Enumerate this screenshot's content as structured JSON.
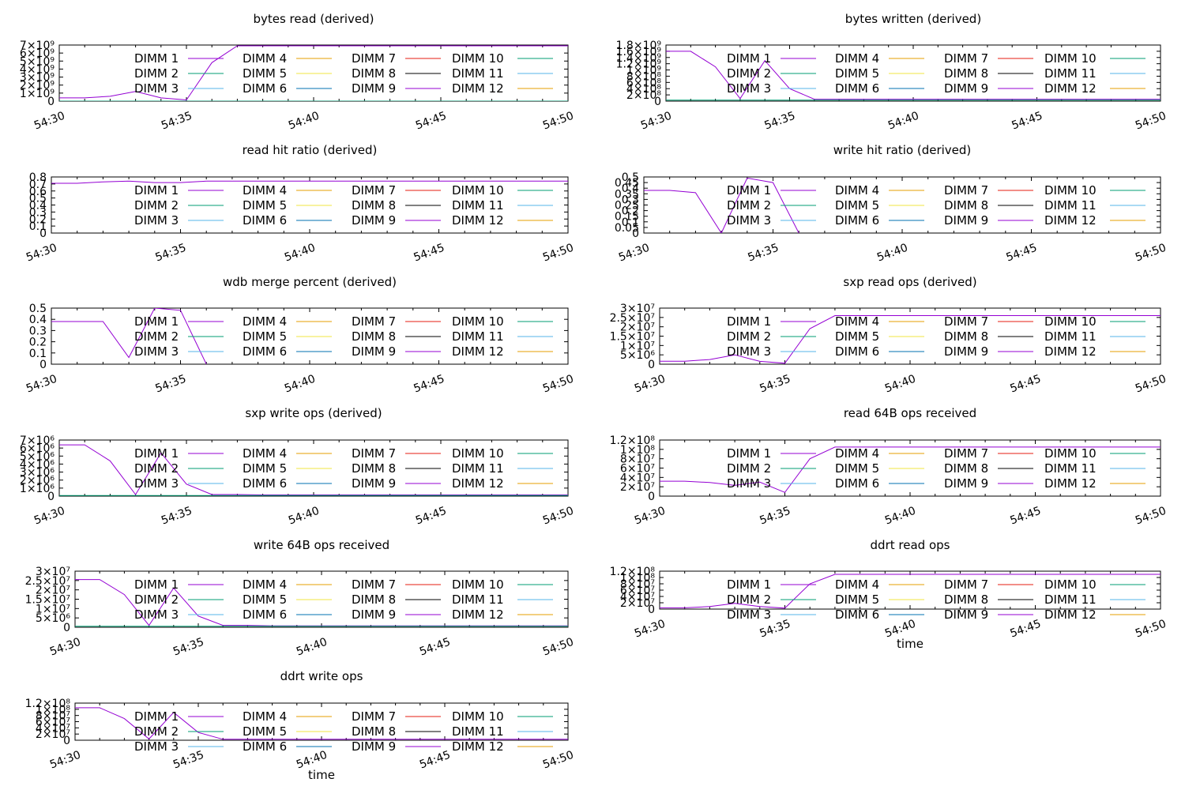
{
  "legend_labels": [
    "DIMM 1",
    "DIMM 2",
    "DIMM 3",
    "DIMM 4",
    "DIMM 5",
    "DIMM 6",
    "DIMM 7",
    "DIMM 8",
    "DIMM 9",
    "DIMM 10",
    "DIMM 11",
    "DIMM 12"
  ],
  "legend_colors": [
    "#9400d3",
    "#009e73",
    "#56b4e9",
    "#e69f00",
    "#f0e442",
    "#0072b2",
    "#e51e10",
    "#000000",
    "#9400d3",
    "#009e73",
    "#56b4e9",
    "#e69f00"
  ],
  "chart_data": [
    {
      "type": "line",
      "title": "bytes read (derived)",
      "xlabel": "",
      "x_ticks": [
        "54:30",
        "54:35",
        "54:40",
        "54:45",
        "54:50"
      ],
      "xlim": [
        0,
        20
      ],
      "ylim": [
        0,
        7000000000
      ],
      "y_ticks": [
        "0",
        "1×10⁹",
        "2×10⁹",
        "3×10⁹",
        "4×10⁹",
        "5×10⁹",
        "6×10⁹",
        "7×10⁹"
      ],
      "y_tick_values": [
        0,
        1000000000,
        2000000000,
        3000000000,
        4000000000,
        5000000000,
        6000000000,
        7000000000
      ],
      "legend_labels": [
        "DIMM 1",
        "DIMM 2",
        "DIMM 3",
        "DIMM 4",
        "DIMM 5",
        "DIMM 6",
        "DIMM 7",
        "DIMM 8",
        "DIMM 9",
        "DIMM 10",
        "DIMM 11",
        "DIMM 12"
      ],
      "series": [
        {
          "name": "DIMM 1",
          "x": [
            0,
            1,
            2,
            3,
            4,
            5,
            6,
            7,
            8,
            9,
            10,
            11,
            12,
            13,
            14,
            15,
            16,
            17,
            18,
            19,
            20
          ],
          "y": [
            400000000,
            400000000,
            600000000,
            1200000000,
            400000000,
            150000000,
            4800000000,
            6900000000,
            6900000000,
            6900000000,
            6900000000,
            6900000000,
            6900000000,
            6900000000,
            6900000000,
            6900000000,
            6900000000,
            6900000000,
            6900000000,
            6900000000,
            6900000000
          ]
        },
        {
          "name": "DIMM 2",
          "x": [
            0,
            20
          ],
          "y": [
            0,
            0
          ]
        }
      ]
    },
    {
      "type": "line",
      "title": "bytes written (derived)",
      "xlabel": "",
      "x_ticks": [
        "54:30",
        "54:35",
        "54:40",
        "54:45",
        "54:50"
      ],
      "xlim": [
        0,
        20
      ],
      "ylim": [
        0,
        1800000000
      ],
      "y_ticks": [
        "0",
        "2×10⁸",
        "4×10⁸",
        "6×10⁸",
        "8×10⁸",
        "1×10⁹",
        "1.2×10⁹",
        "1.4×10⁹",
        "1.6×10⁹",
        "1.8×10⁹"
      ],
      "y_tick_values": [
        0,
        200000000,
        400000000,
        600000000,
        800000000,
        1000000000,
        1200000000,
        1400000000,
        1600000000,
        1800000000
      ],
      "legend_labels": [
        "DIMM 1",
        "DIMM 2",
        "DIMM 3",
        "DIMM 4",
        "DIMM 5",
        "DIMM 6",
        "DIMM 7",
        "DIMM 8",
        "DIMM 9",
        "DIMM 10",
        "DIMM 11",
        "DIMM 12"
      ],
      "series": [
        {
          "name": "DIMM 1",
          "x": [
            0,
            1,
            2,
            3,
            4,
            5,
            6,
            7,
            8,
            9,
            10,
            11,
            12,
            13,
            14,
            15,
            16,
            17,
            18,
            19,
            20
          ],
          "y": [
            1600000000,
            1600000000,
            1100000000,
            80000000,
            1300000000,
            400000000,
            60000000,
            60000000,
            60000000,
            60000000,
            60000000,
            60000000,
            60000000,
            60000000,
            60000000,
            60000000,
            60000000,
            60000000,
            60000000,
            60000000,
            60000000
          ]
        },
        {
          "name": "DIMM 2",
          "x": [
            0,
            20
          ],
          "y": [
            30000000,
            30000000
          ]
        }
      ]
    },
    {
      "type": "line",
      "title": "read hit ratio (derived)",
      "xlabel": "",
      "x_ticks": [
        "54:30",
        "54:35",
        "54:40",
        "54:45",
        "54:50"
      ],
      "xlim": [
        0,
        20
      ],
      "ylim": [
        0,
        0.8
      ],
      "y_ticks": [
        "0",
        "0.1",
        "0.2",
        "0.3",
        "0.4",
        "0.5",
        "0.6",
        "0.7",
        "0.8"
      ],
      "y_tick_values": [
        0,
        0.1,
        0.2,
        0.3,
        0.4,
        0.5,
        0.6,
        0.7,
        0.8
      ],
      "legend_labels": [
        "DIMM 1",
        "DIMM 2",
        "DIMM 3",
        "DIMM 4",
        "DIMM 5",
        "DIMM 6",
        "DIMM 7",
        "DIMM 8",
        "DIMM 9",
        "DIMM 10",
        "DIMM 11",
        "DIMM 12"
      ],
      "series": [
        {
          "name": "DIMM 1",
          "x": [
            0,
            1,
            2,
            3,
            4,
            5,
            6,
            7,
            8,
            9,
            10,
            11,
            12,
            13,
            14,
            15,
            16,
            17,
            18,
            19,
            20
          ],
          "y": [
            0.71,
            0.71,
            0.73,
            0.74,
            0.72,
            0.72,
            0.74,
            0.74,
            0.74,
            0.74,
            0.74,
            0.74,
            0.74,
            0.74,
            0.74,
            0.74,
            0.74,
            0.74,
            0.74,
            0.74,
            0.74
          ]
        }
      ]
    },
    {
      "type": "line",
      "title": "write hit ratio (derived)",
      "xlabel": "",
      "x_ticks": [
        "54:30",
        "54:35",
        "54:40",
        "54:45",
        "54:50"
      ],
      "xlim": [
        0,
        20
      ],
      "ylim": [
        0,
        0.5
      ],
      "y_ticks": [
        "0",
        "0.05",
        "0.1",
        "0.15",
        "0.2",
        "0.25",
        "0.3",
        "0.35",
        "0.4",
        "0.45",
        "0.5"
      ],
      "y_tick_values": [
        0,
        0.05,
        0.1,
        0.15,
        0.2,
        0.25,
        0.3,
        0.35,
        0.4,
        0.45,
        0.5
      ],
      "legend_labels": [
        "DIMM 1",
        "DIMM 2",
        "DIMM 3",
        "DIMM 4",
        "DIMM 5",
        "DIMM 6",
        "DIMM 7",
        "DIMM 8",
        "DIMM 9",
        "DIMM 10",
        "DIMM 11",
        "DIMM 12"
      ],
      "series": [
        {
          "name": "DIMM 1",
          "x": [
            0,
            1,
            2,
            3,
            4,
            5,
            6
          ],
          "y": [
            0.38,
            0.38,
            0.36,
            0.0,
            0.49,
            0.45,
            0.0
          ]
        }
      ]
    },
    {
      "type": "line",
      "title": "wdb merge percent (derived)",
      "xlabel": "",
      "x_ticks": [
        "54:30",
        "54:35",
        "54:40",
        "54:45",
        "54:50"
      ],
      "xlim": [
        0,
        20
      ],
      "ylim": [
        0,
        0.5
      ],
      "y_ticks": [
        "0",
        "0.1",
        "0.2",
        "0.3",
        "0.4",
        "0.5"
      ],
      "y_tick_values": [
        0,
        0.1,
        0.2,
        0.3,
        0.4,
        0.5
      ],
      "legend_labels": [
        "DIMM 1",
        "DIMM 2",
        "DIMM 3",
        "DIMM 4",
        "DIMM 5",
        "DIMM 6",
        "DIMM 7",
        "DIMM 8",
        "DIMM 9",
        "DIMM 10",
        "DIMM 11",
        "DIMM 12"
      ],
      "series": [
        {
          "name": "DIMM 1",
          "x": [
            0,
            1,
            2,
            3,
            4,
            5,
            6
          ],
          "y": [
            0.38,
            0.38,
            0.38,
            0.06,
            0.5,
            0.48,
            0.0
          ]
        }
      ]
    },
    {
      "type": "line",
      "title": "sxp read ops (derived)",
      "xlabel": "",
      "x_ticks": [
        "54:30",
        "54:35",
        "54:40",
        "54:45",
        "54:50"
      ],
      "xlim": [
        0,
        20
      ],
      "ylim": [
        0,
        30000000
      ],
      "y_ticks": [
        "0",
        "5×10⁶",
        "1×10⁷",
        "1.5×10⁷",
        "2×10⁷",
        "2.5×10⁷",
        "3×10⁷"
      ],
      "y_tick_values": [
        0,
        5000000,
        10000000,
        15000000,
        20000000,
        25000000,
        30000000
      ],
      "legend_labels": [
        "DIMM 1",
        "DIMM 2",
        "DIMM 3",
        "DIMM 4",
        "DIMM 5",
        "DIMM 6",
        "DIMM 7",
        "DIMM 8",
        "DIMM 9",
        "DIMM 10",
        "DIMM 11",
        "DIMM 12"
      ],
      "series": [
        {
          "name": "DIMM 1",
          "x": [
            0,
            1,
            2,
            3,
            4,
            5,
            6,
            7,
            8,
            9,
            10,
            11,
            12,
            13,
            14,
            15,
            16,
            17,
            18,
            19,
            20
          ],
          "y": [
            1600000,
            1600000,
            2500000,
            5000000,
            1500000,
            500000,
            19000000,
            26000000,
            26000000,
            26000000,
            26000000,
            26000000,
            26000000,
            26000000,
            26000000,
            26000000,
            26000000,
            26000000,
            26000000,
            26000000,
            26000000
          ]
        }
      ]
    },
    {
      "type": "line",
      "title": "sxp write ops (derived)",
      "xlabel": "",
      "x_ticks": [
        "54:30",
        "54:35",
        "54:40",
        "54:45",
        "54:50"
      ],
      "xlim": [
        0,
        20
      ],
      "ylim": [
        0,
        7000000
      ],
      "y_ticks": [
        "0",
        "1×10⁶",
        "2×10⁶",
        "3×10⁶",
        "4×10⁶",
        "5×10⁶",
        "6×10⁶",
        "7×10⁶"
      ],
      "y_tick_values": [
        0,
        1000000,
        2000000,
        3000000,
        4000000,
        5000000,
        6000000,
        7000000
      ],
      "legend_labels": [
        "DIMM 1",
        "DIMM 2",
        "DIMM 3",
        "DIMM 4",
        "DIMM 5",
        "DIMM 6",
        "DIMM 7",
        "DIMM 8",
        "DIMM 9",
        "DIMM 10",
        "DIMM 11",
        "DIMM 12"
      ],
      "series": [
        {
          "name": "DIMM 1",
          "x": [
            0,
            1,
            2,
            3,
            4,
            5,
            6,
            7,
            8,
            9,
            10,
            11,
            12,
            13,
            14,
            15,
            16,
            17,
            18,
            19,
            20
          ],
          "y": [
            6400000,
            6400000,
            4400000,
            200000,
            5400000,
            1500000,
            200000,
            200000,
            150000,
            150000,
            150000,
            150000,
            150000,
            150000,
            150000,
            150000,
            150000,
            150000,
            150000,
            150000,
            150000
          ]
        },
        {
          "name": "DIMM 2",
          "x": [
            0,
            20
          ],
          "y": [
            80000,
            80000
          ]
        }
      ]
    },
    {
      "type": "line",
      "title": "read 64B ops received",
      "xlabel": "",
      "x_ticks": [
        "54:30",
        "54:35",
        "54:40",
        "54:45",
        "54:50"
      ],
      "xlim": [
        0,
        20
      ],
      "ylim": [
        0,
        120000000
      ],
      "y_ticks": [
        "0",
        "2×10⁷",
        "4×10⁷",
        "6×10⁷",
        "8×10⁷",
        "1×10⁸",
        "1.2×10⁸"
      ],
      "y_tick_values": [
        0,
        20000000,
        40000000,
        60000000,
        80000000,
        100000000,
        120000000
      ],
      "legend_labels": [
        "DIMM 1",
        "DIMM 2",
        "DIMM 3",
        "DIMM 4",
        "DIMM 5",
        "DIMM 6",
        "DIMM 7",
        "DIMM 8",
        "DIMM 9",
        "DIMM 10",
        "DIMM 11",
        "DIMM 12"
      ],
      "series": [
        {
          "name": "DIMM 1",
          "x": [
            0,
            1,
            2,
            3,
            4,
            5,
            6,
            7,
            8,
            9,
            10,
            11,
            12,
            13,
            14,
            15,
            16,
            17,
            18,
            19,
            20
          ],
          "y": [
            32000000,
            32000000,
            29000000,
            23000000,
            30000000,
            8000000,
            80000000,
            105000000,
            105000000,
            105000000,
            105000000,
            105000000,
            105000000,
            105000000,
            105000000,
            105000000,
            105000000,
            105000000,
            105000000,
            105000000,
            105000000
          ]
        }
      ]
    },
    {
      "type": "line",
      "title": "write 64B ops received",
      "xlabel": "",
      "x_ticks": [
        "54:30",
        "54:35",
        "54:40",
        "54:45",
        "54:50"
      ],
      "xlim": [
        0,
        20
      ],
      "ylim": [
        0,
        30000000
      ],
      "y_ticks": [
        "0",
        "5×10⁶",
        "1×10⁷",
        "1.5×10⁷",
        "2×10⁷",
        "2.5×10⁷",
        "3×10⁷"
      ],
      "y_tick_values": [
        0,
        5000000,
        10000000,
        15000000,
        20000000,
        25000000,
        30000000
      ],
      "legend_labels": [
        "DIMM 1",
        "DIMM 2",
        "DIMM 3",
        "DIMM 4",
        "DIMM 5",
        "DIMM 6",
        "DIMM 7",
        "DIMM 8",
        "DIMM 9",
        "DIMM 10",
        "DIMM 11",
        "DIMM 12"
      ],
      "series": [
        {
          "name": "DIMM 1",
          "x": [
            0,
            1,
            2,
            3,
            4,
            5,
            6,
            7,
            8,
            9,
            10,
            11,
            12,
            13,
            14,
            15,
            16,
            17,
            18,
            19,
            20
          ],
          "y": [
            25500000,
            25500000,
            17500000,
            1000000,
            21000000,
            6000000,
            1000000,
            1000000,
            700000,
            700000,
            700000,
            700000,
            700000,
            700000,
            700000,
            700000,
            700000,
            700000,
            700000,
            700000,
            700000
          ]
        },
        {
          "name": "DIMM 2",
          "x": [
            0,
            20
          ],
          "y": [
            500000,
            500000
          ]
        }
      ]
    },
    {
      "type": "line",
      "title": "ddrt read ops",
      "xlabel": "time",
      "x_ticks": [
        "54:30",
        "54:35",
        "54:40",
        "54:45",
        "54:50"
      ],
      "xlim": [
        0,
        20
      ],
      "ylim": [
        0,
        120000000
      ],
      "y_ticks": [
        "0",
        "2×10⁷",
        "4×10⁷",
        "6×10⁷",
        "8×10⁷",
        "1×10⁸",
        "1.2×10⁸"
      ],
      "y_tick_values": [
        0,
        20000000,
        40000000,
        60000000,
        80000000,
        100000000,
        120000000
      ],
      "legend_labels": [
        "DIMM 1",
        "DIMM 2",
        "DIMM 3",
        "DIMM 4",
        "DIMM 5",
        "DIMM 6",
        "DIMM 7",
        "DIMM 8",
        "DIMM 9",
        "DIMM 10",
        "DIMM 11",
        "DIMM 12"
      ],
      "series": [
        {
          "name": "DIMM 1",
          "x": [
            0,
            1,
            2,
            3,
            4,
            5,
            6,
            7,
            8,
            9,
            10,
            11,
            12,
            13,
            14,
            15,
            16,
            17,
            18,
            19,
            20
          ],
          "y": [
            4000000,
            4000000,
            8000000,
            18000000,
            8000000,
            3000000,
            80000000,
            110000000,
            110000000,
            110000000,
            110000000,
            110000000,
            110000000,
            110000000,
            110000000,
            110000000,
            110000000,
            110000000,
            110000000,
            110000000,
            110000000
          ]
        }
      ]
    },
    {
      "type": "line",
      "title": "ddrt write ops",
      "xlabel": "time",
      "x_ticks": [
        "54:30",
        "54:35",
        "54:40",
        "54:45",
        "54:50"
      ],
      "xlim": [
        0,
        20
      ],
      "ylim": [
        0,
        120000000
      ],
      "y_ticks": [
        "0",
        "2×10⁷",
        "4×10⁷",
        "6×10⁷",
        "8×10⁷",
        "1×10⁸",
        "1.2×10⁸"
      ],
      "y_tick_values": [
        0,
        20000000,
        40000000,
        60000000,
        80000000,
        100000000,
        120000000
      ],
      "legend_labels": [
        "DIMM 1",
        "DIMM 2",
        "DIMM 3",
        "DIMM 4",
        "DIMM 5",
        "DIMM 6",
        "DIMM 7",
        "DIMM 8",
        "DIMM 9",
        "DIMM 10",
        "DIMM 11",
        "DIMM 12"
      ],
      "series": [
        {
          "name": "DIMM 1",
          "x": [
            0,
            1,
            2,
            3,
            4,
            5,
            6,
            7,
            8,
            9,
            10,
            11,
            12,
            13,
            14,
            15,
            16,
            17,
            18,
            19,
            20
          ],
          "y": [
            105000000,
            105000000,
            70000000,
            4000000,
            90000000,
            25000000,
            3000000,
            3000000,
            3000000,
            3000000,
            3000000,
            3000000,
            3000000,
            3000000,
            3000000,
            3000000,
            3000000,
            3000000,
            3000000,
            3000000,
            3000000
          ]
        }
      ]
    }
  ]
}
